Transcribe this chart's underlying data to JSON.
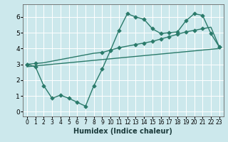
{
  "xlabel": "Humidex (Indice chaleur)",
  "bg_color": "#cce8ec",
  "grid_color": "#ffffff",
  "line_color": "#2a7a6a",
  "xlim": [
    -0.5,
    23.5
  ],
  "ylim": [
    -0.3,
    6.8
  ],
  "xticks": [
    0,
    1,
    2,
    3,
    4,
    5,
    6,
    7,
    8,
    9,
    10,
    11,
    12,
    13,
    14,
    15,
    16,
    17,
    18,
    19,
    20,
    21,
    22,
    23
  ],
  "yticks": [
    0,
    1,
    2,
    3,
    4,
    5,
    6
  ],
  "line1_x": [
    0,
    1,
    2,
    3,
    4,
    5,
    6,
    7,
    8,
    9,
    10,
    11,
    12,
    13,
    14,
    15,
    16,
    17,
    18,
    19,
    20,
    21,
    22,
    23
  ],
  "line1_y": [
    3.0,
    2.85,
    1.65,
    0.85,
    1.05,
    0.85,
    0.6,
    0.35,
    1.65,
    2.7,
    3.9,
    5.15,
    6.2,
    6.0,
    5.85,
    5.25,
    4.95,
    5.0,
    5.05,
    5.75,
    6.2,
    6.1,
    4.95,
    4.1
  ],
  "line2_x": [
    0,
    1,
    9,
    10,
    11,
    13,
    14,
    15,
    16,
    17,
    18,
    19,
    20,
    21,
    23
  ],
  "line2_y": [
    3.0,
    3.05,
    3.75,
    3.9,
    4.05,
    4.25,
    4.35,
    4.45,
    4.6,
    4.75,
    4.9,
    5.05,
    5.15,
    5.25,
    4.1
  ],
  "line2_all_x": [
    0,
    1,
    2,
    3,
    4,
    5,
    6,
    7,
    8,
    9,
    10,
    11,
    12,
    13,
    14,
    15,
    16,
    17,
    18,
    19,
    20,
    21,
    22,
    23
  ],
  "line2_all_y": [
    3.0,
    3.05,
    3.1,
    3.2,
    3.3,
    3.4,
    3.5,
    3.6,
    3.7,
    3.75,
    3.9,
    4.05,
    4.15,
    4.25,
    4.35,
    4.45,
    4.6,
    4.75,
    4.9,
    5.05,
    5.15,
    5.25,
    5.35,
    4.1
  ],
  "line3_x": [
    0,
    23
  ],
  "line3_y": [
    2.85,
    4.0
  ],
  "marker": "D",
  "markersize": 2.8,
  "linewidth": 1.0
}
